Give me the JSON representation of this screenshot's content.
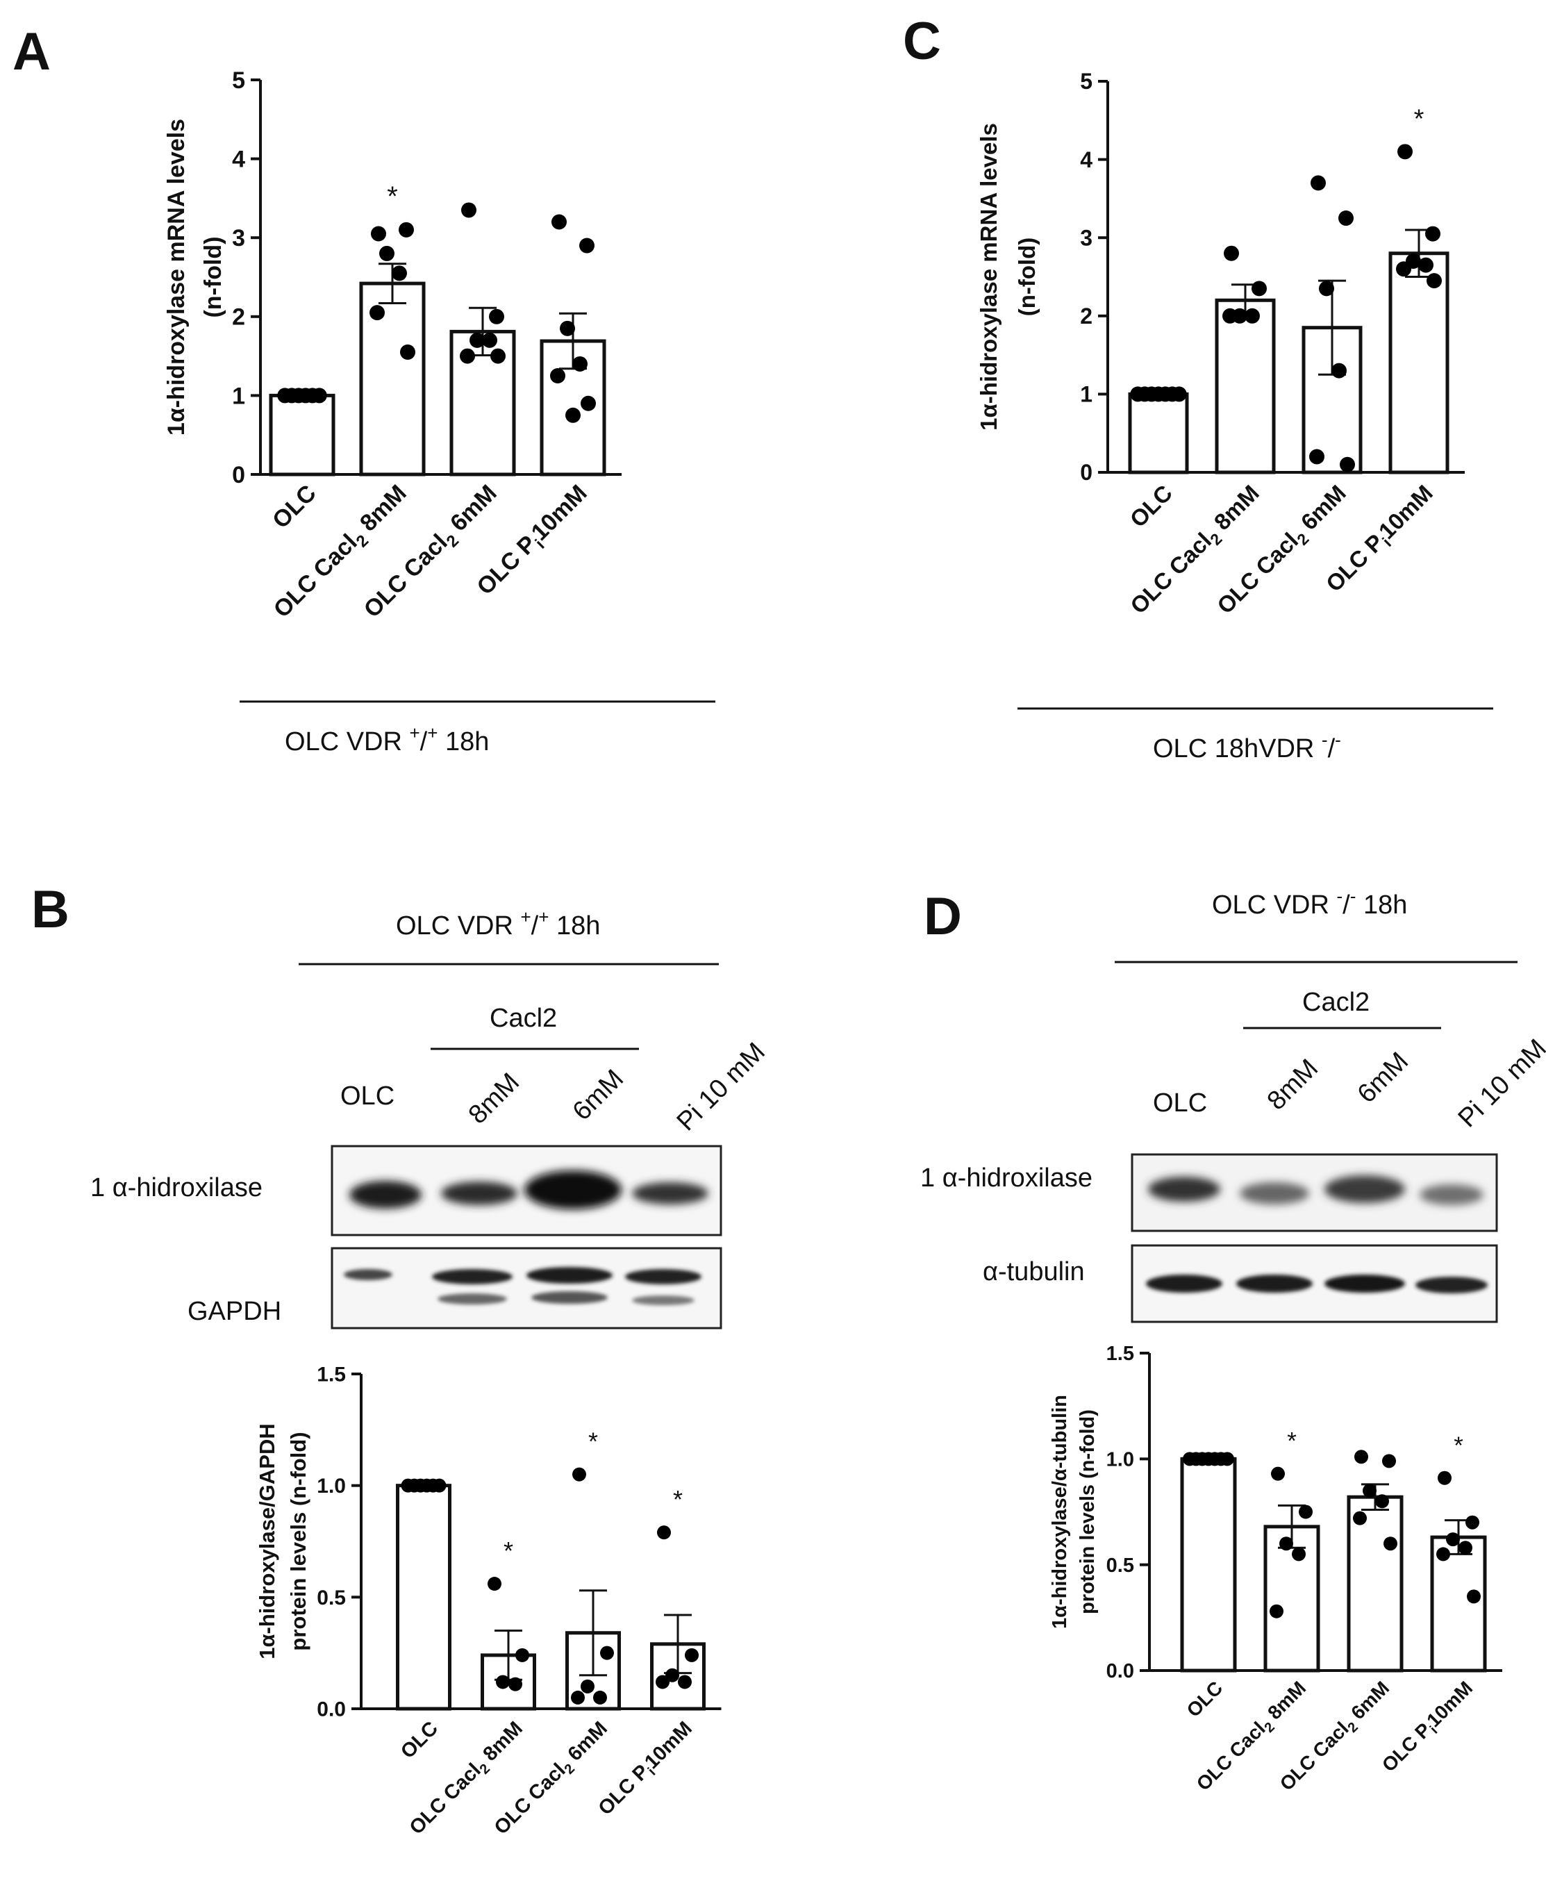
{
  "panels": {
    "A": {
      "letter": "A",
      "group_label": "OLC VDR +/+ 18h",
      "chart": {
        "type": "bar",
        "ylabel": [
          "1α-hidroxylase mRNA levels",
          "(n-fold)"
        ],
        "yticks": [
          "0",
          "1",
          "2",
          "3",
          "4",
          "5"
        ],
        "ylim": [
          0,
          5
        ],
        "categories": [
          "OLC",
          "OLC Cacl2 8mM",
          "OLC Cacl2 6mM",
          "OLC Pi 10mM"
        ],
        "values": [
          1.0,
          2.42,
          1.81,
          1.69
        ],
        "sem": [
          0.0,
          0.25,
          0.3,
          0.35
        ],
        "points": [
          [
            1,
            1,
            1,
            1,
            1,
            1
          ],
          [
            3.05,
            3.1,
            2.8,
            2.55,
            2.05,
            1.55
          ],
          [
            3.35,
            2.0,
            1.7,
            1.7,
            1.5,
            1.5
          ],
          [
            3.2,
            2.9,
            1.85,
            1.4,
            1.25,
            0.9,
            0.75
          ]
        ],
        "significance": [
          "",
          "*",
          "",
          ""
        ]
      }
    },
    "B": {
      "letter": "B",
      "group_label": "OLC VDR +/+ 18h",
      "treatment_label": "Cacl2",
      "lane_labels": [
        "OLC",
        "8mM",
        "6mM",
        "Pi 10 mM"
      ],
      "blot_labels": [
        "1 α-hidroxilase",
        "GAPDH"
      ],
      "chart": {
        "type": "bar",
        "ylabel": [
          "1α-hidroxylase/GAPDH",
          "protein levels (n-fold)"
        ],
        "yticks": [
          "0.0",
          "0.5",
          "1.0",
          "1.5"
        ],
        "ylim": [
          0,
          1.5
        ],
        "categories": [
          "OLC",
          "OLC Cacl2 8mM",
          "OLC Cacl2 6mM",
          "OLC Pi 10mM"
        ],
        "values": [
          1.0,
          0.24,
          0.34,
          0.29
        ],
        "sem": [
          0.0,
          0.11,
          0.19,
          0.13
        ],
        "points": [
          [
            1,
            1,
            1,
            1,
            1,
            1
          ],
          [
            0.56,
            0.24,
            0.12,
            0.11
          ],
          [
            1.05,
            0.25,
            0.1,
            0.05,
            0.05
          ],
          [
            0.79,
            0.24,
            0.15,
            0.12,
            0.12
          ]
        ],
        "significance": [
          "",
          "*",
          "*",
          "*"
        ]
      }
    },
    "C": {
      "letter": "C",
      "group_label": "OLC 18hVDR -/-",
      "chart": {
        "type": "bar",
        "ylabel": [
          "1α-hidroxylase mRNA levels",
          "(n-fold)"
        ],
        "yticks": [
          "0",
          "1",
          "2",
          "3",
          "4",
          "5"
        ],
        "ylim": [
          0,
          5
        ],
        "categories": [
          "OLC",
          "OLC Cacl2 8mM",
          "OLC Cacl2 6mM",
          "OLC Pi 10mM"
        ],
        "values": [
          1.0,
          2.2,
          1.85,
          2.8
        ],
        "sem": [
          0.0,
          0.2,
          0.6,
          0.3
        ],
        "points": [
          [
            1,
            1,
            1,
            1,
            1,
            1,
            1
          ],
          [
            2.8,
            2.35,
            2.0,
            2.0,
            2.0
          ],
          [
            3.7,
            3.25,
            2.35,
            1.3,
            0.2,
            0.1
          ],
          [
            4.1,
            3.05,
            2.7,
            2.65,
            2.6,
            2.45
          ]
        ],
        "significance": [
          "",
          "",
          "",
          "*"
        ]
      }
    },
    "D": {
      "letter": "D",
      "group_label": "OLC VDR -/- 18h",
      "treatment_label": "Cacl2",
      "lane_labels": [
        "OLC",
        "8mM",
        "6mM",
        "Pi 10 mM"
      ],
      "blot_labels": [
        "1 α-hidroxilase",
        "α-tubulin"
      ],
      "chart": {
        "type": "bar",
        "ylabel": [
          "1α-hidroxylase/α-tubulin",
          "protein levels (n-fold)"
        ],
        "yticks": [
          "0.0",
          "0.5",
          "1.0",
          "1.5"
        ],
        "ylim": [
          0,
          1.5
        ],
        "categories": [
          "OLC",
          "OLC Cacl2 8mM",
          "OLC Cacl2 6mM",
          "OLC Pi 10mM"
        ],
        "values": [
          1.0,
          0.68,
          0.82,
          0.63
        ],
        "sem": [
          0.0,
          0.1,
          0.06,
          0.08
        ],
        "points": [
          [
            1,
            1,
            1,
            1,
            1,
            1,
            1
          ],
          [
            0.93,
            0.75,
            0.6,
            0.55,
            0.28
          ],
          [
            1.01,
            0.99,
            0.85,
            0.8,
            0.72,
            0.6
          ],
          [
            0.91,
            0.7,
            0.62,
            0.58,
            0.55,
            0.35
          ]
        ],
        "significance": [
          "",
          "*",
          "",
          "*"
        ]
      }
    }
  },
  "chart_data": [
    {
      "type": "bar",
      "title": "A",
      "ylabel": "1α-hidroxylase mRNA levels (n-fold)",
      "ylim": [
        0,
        5
      ],
      "categories": [
        "OLC",
        "OLC Cacl2 8mM",
        "OLC Cacl2 6mM",
        "OLC Pi 10mM"
      ],
      "values": [
        1.0,
        2.42,
        1.81,
        1.69
      ],
      "sem": [
        0.0,
        0.25,
        0.3,
        0.35
      ],
      "points": [
        [
          1,
          1,
          1,
          1,
          1,
          1
        ],
        [
          3.05,
          3.1,
          2.8,
          2.55,
          2.05,
          1.55
        ],
        [
          3.35,
          2.0,
          1.7,
          1.7,
          1.5,
          1.5
        ],
        [
          3.2,
          2.9,
          1.85,
          1.4,
          1.25,
          0.9,
          0.75
        ]
      ],
      "significance": [
        "",
        "*",
        "",
        ""
      ],
      "group_label": "OLC VDR +/+ 18h"
    },
    {
      "type": "bar",
      "title": "B",
      "ylabel": "1α-hidroxylase/GAPDH protein levels (n-fold)",
      "ylim": [
        0,
        1.5
      ],
      "categories": [
        "OLC",
        "OLC Cacl2 8mM",
        "OLC Cacl2 6mM",
        "OLC Pi 10mM"
      ],
      "values": [
        1.0,
        0.24,
        0.34,
        0.29
      ],
      "sem": [
        0.0,
        0.11,
        0.19,
        0.13
      ],
      "points": [
        [
          1,
          1,
          1,
          1,
          1,
          1
        ],
        [
          0.56,
          0.24,
          0.12,
          0.11
        ],
        [
          1.05,
          0.25,
          0.1,
          0.05,
          0.05
        ],
        [
          0.79,
          0.24,
          0.15,
          0.12,
          0.12
        ]
      ],
      "significance": [
        "",
        "*",
        "*",
        "*"
      ]
    },
    {
      "type": "bar",
      "title": "C",
      "ylabel": "1α-hidroxylase mRNA levels (n-fold)",
      "ylim": [
        0,
        5
      ],
      "categories": [
        "OLC",
        "OLC Cacl2 8mM",
        "OLC Cacl2 6mM",
        "OLC Pi 10mM"
      ],
      "values": [
        1.0,
        2.2,
        1.85,
        2.8
      ],
      "sem": [
        0.0,
        0.2,
        0.6,
        0.3
      ],
      "points": [
        [
          1,
          1,
          1,
          1,
          1,
          1,
          1
        ],
        [
          2.8,
          2.35,
          2.0,
          2.0,
          2.0
        ],
        [
          3.7,
          3.25,
          2.35,
          1.3,
          0.2,
          0.1
        ],
        [
          4.1,
          3.05,
          2.7,
          2.65,
          2.6,
          2.45
        ]
      ],
      "significance": [
        "",
        "",
        "",
        "*"
      ],
      "group_label": "OLC 18hVDR -/-"
    },
    {
      "type": "bar",
      "title": "D",
      "ylabel": "1α-hidroxylase/α-tubulin protein levels (n-fold)",
      "ylim": [
        0,
        1.5
      ],
      "categories": [
        "OLC",
        "OLC Cacl2 8mM",
        "OLC Cacl2 6mM",
        "OLC Pi 10mM"
      ],
      "values": [
        1.0,
        0.68,
        0.82,
        0.63
      ],
      "sem": [
        0.0,
        0.1,
        0.06,
        0.08
      ],
      "points": [
        [
          1,
          1,
          1,
          1,
          1,
          1,
          1
        ],
        [
          0.93,
          0.75,
          0.6,
          0.55,
          0.28
        ],
        [
          1.01,
          0.99,
          0.85,
          0.8,
          0.72,
          0.6
        ],
        [
          0.91,
          0.7,
          0.62,
          0.58,
          0.55,
          0.35
        ]
      ],
      "significance": [
        "",
        "*",
        "",
        "*"
      ]
    }
  ]
}
